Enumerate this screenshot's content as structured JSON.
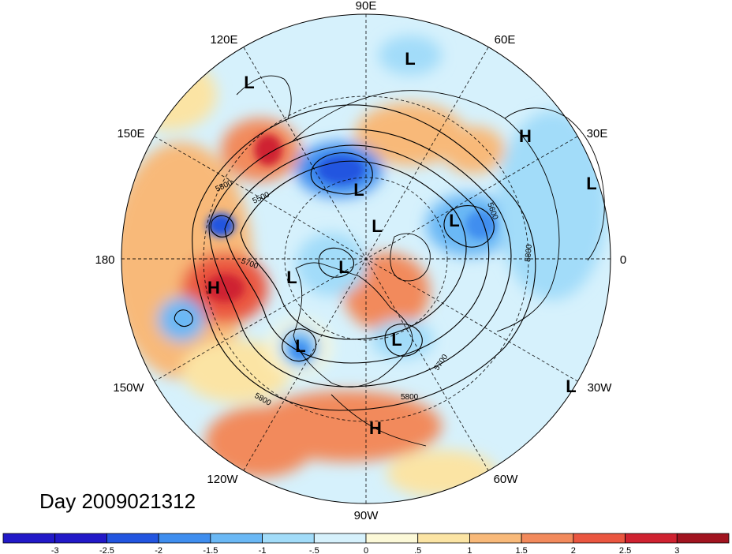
{
  "title": "Day 2009021312",
  "longitude_labels": {
    "lon_90E": "90E",
    "lon_60E": "60E",
    "lon_30E": "30E",
    "lon_0": "0",
    "lon_30W": "30W",
    "lon_60W": "60W",
    "lon_90W": "90W",
    "lon_120W": "120W",
    "lon_150W": "150W",
    "lon_180": "180",
    "lon_150E": "150E",
    "lon_120E": "120E"
  },
  "pressure_centers": {
    "lows": [
      "L",
      "L",
      "L",
      "L",
      "L",
      "L",
      "L",
      "L",
      "L",
      "L",
      "L"
    ],
    "highs": [
      "H",
      "H",
      "H"
    ]
  },
  "contour_labels": [
    "5800",
    "5500",
    "5700",
    "5800",
    "5700",
    "5800",
    "5600",
    "5800"
  ],
  "colorbar": {
    "ticks": [
      "-3",
      "-2.5",
      "-2",
      "-1.5",
      "-1",
      "-.5",
      "0",
      ".5",
      "1",
      "1.5",
      "2",
      "2.5",
      "3"
    ],
    "colors": [
      "#2219c8",
      "#2255e0",
      "#3f8eef",
      "#6ab8f5",
      "#a2dcf9",
      "#d6f1fc",
      "#fcf9d8",
      "#fbe4a4",
      "#f8b979",
      "#f28a5c",
      "#ea5640",
      "#cf2230",
      "#a1141f"
    ]
  }
}
